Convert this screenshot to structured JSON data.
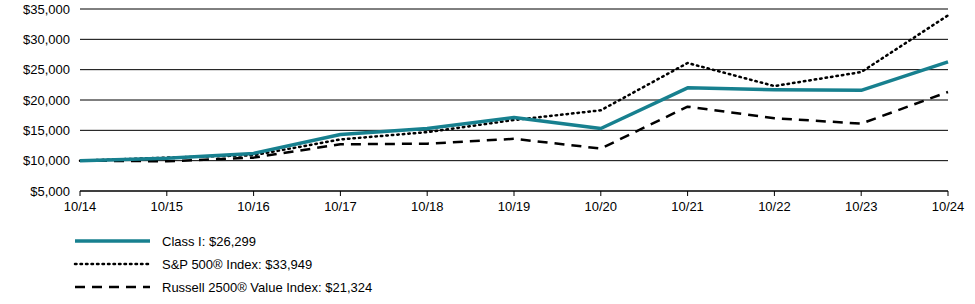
{
  "chart_data": {
    "type": "line",
    "categories": [
      "10/14",
      "10/15",
      "10/16",
      "10/17",
      "10/18",
      "10/19",
      "10/20",
      "10/21",
      "10/22",
      "10/23",
      "10/24"
    ],
    "series": [
      {
        "name": "Class I: $26,299",
        "color": "#17808f",
        "line_style": "solid",
        "values": [
          10000,
          10400,
          11200,
          14300,
          15300,
          17100,
          15300,
          22000,
          21700,
          21600,
          26299
        ]
      },
      {
        "name": "S&P 500® Index: $33,949",
        "color": "#000000",
        "line_style": "dotted",
        "values": [
          10000,
          10500,
          10900,
          13500,
          14700,
          16700,
          18300,
          26100,
          22300,
          24600,
          33949
        ]
      },
      {
        "name": "Russell 2500® Value Index: $21,324",
        "color": "#000000",
        "line_style": "dashed",
        "values": [
          10000,
          9900,
          10500,
          12700,
          12800,
          13600,
          12000,
          18900,
          17000,
          16100,
          21324
        ]
      }
    ],
    "ylim": [
      5000,
      35000
    ],
    "yticks": [
      {
        "value": 5000,
        "label": "$5,000"
      },
      {
        "value": 10000,
        "label": "$10,000"
      },
      {
        "value": 15000,
        "label": "$15,000"
      },
      {
        "value": 20000,
        "label": "$20,000"
      },
      {
        "value": 25000,
        "label": "$25,000"
      },
      {
        "value": 30000,
        "label": "$30,000"
      },
      {
        "value": 35000,
        "label": "$35,000"
      }
    ],
    "grid": true,
    "legend": "bottom"
  }
}
